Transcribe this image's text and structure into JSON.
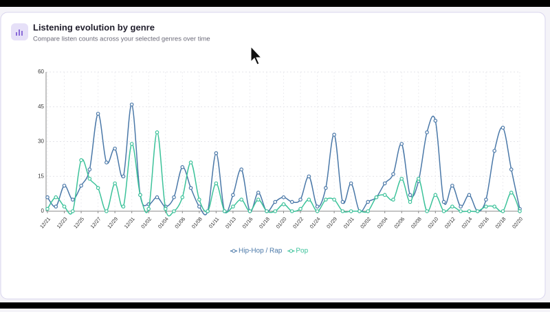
{
  "chart_data": {
    "type": "line",
    "title": "Listening evolution by genre",
    "subtitle": "Compare listen counts across your selected genres over time",
    "categories": [
      "12/21",
      null,
      "12/23",
      null,
      "12/25",
      null,
      "12/27",
      null,
      "12/29",
      null,
      "12/31",
      null,
      "01/02",
      null,
      "01/04",
      null,
      "01/06",
      null,
      "01/08",
      null,
      "01/11",
      null,
      "01/13",
      null,
      "01/16",
      null,
      "01/18",
      null,
      "01/20",
      null,
      "01/22",
      null,
      "01/24",
      null,
      "01/29",
      null,
      "01/31",
      null,
      "02/02",
      null,
      "02/04",
      null,
      "02/06",
      null,
      "02/08",
      null,
      "02/10",
      null,
      "02/12",
      null,
      "02/14",
      null,
      "02/16",
      null,
      "02/18",
      null,
      "02/20"
    ],
    "series": [
      {
        "name": "Hip-Hop / Rap",
        "color": "#4a78a8",
        "values": [
          6,
          2,
          11,
          5,
          11,
          18,
          42,
          21,
          27,
          15,
          46,
          7,
          3,
          6,
          2,
          6,
          19,
          10,
          2,
          0,
          25,
          0,
          7,
          18,
          0,
          8,
          0,
          4,
          6,
          4,
          5,
          15,
          2,
          10,
          33,
          4,
          12,
          0,
          4,
          6,
          12,
          16,
          29,
          7,
          13,
          34,
          39,
          4,
          11,
          2,
          7,
          0,
          5,
          26,
          36,
          18,
          1
        ]
      },
      {
        "name": "Pop",
        "color": "#3cc29a",
        "values": [
          1,
          6,
          2,
          0,
          22,
          14,
          10,
          0,
          12,
          2,
          29,
          7,
          1,
          34,
          1,
          0,
          6,
          21,
          5,
          0,
          12,
          0,
          2,
          5,
          0,
          5,
          0,
          0,
          3,
          0,
          1,
          5,
          0,
          5,
          5,
          0,
          0,
          0,
          0,
          6,
          7,
          5,
          14,
          4,
          14,
          0,
          7,
          0,
          2,
          0,
          0,
          0,
          2,
          2,
          0,
          8,
          0
        ]
      }
    ],
    "ylim": [
      0,
      60
    ],
    "yticks": [
      0,
      15,
      30,
      45,
      60
    ],
    "grid": true
  }
}
